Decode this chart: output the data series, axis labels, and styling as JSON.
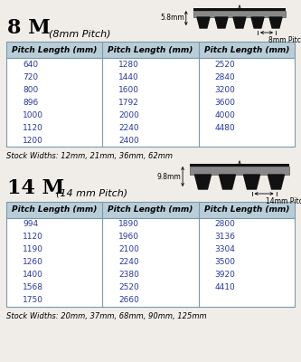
{
  "bg_color": "#f0ede8",
  "table_header_color": "#b8cdd8",
  "table_border_color": "#7a9aaa",
  "text_color_data": "#2a3a9a",
  "section1": {
    "title": "8 M",
    "subtitle": "(8mm Pitch)",
    "dim_height": "5.8mm",
    "dim_pitch": "8mm Pitch",
    "header": [
      "Pitch Length (mm)",
      "Pitch Length (mm)",
      "Pitch Length (mm)"
    ],
    "col1": [
      "640",
      "720",
      "800",
      "896",
      "1000",
      "1120",
      "1200"
    ],
    "col2": [
      "1280",
      "1440",
      "1600",
      "1792",
      "2000",
      "2240",
      "2400"
    ],
    "col3": [
      "2520",
      "2840",
      "3200",
      "3600",
      "4000",
      "4480",
      ""
    ],
    "stock": "Stock Widths: 12mm, 21mm, 36mm, 62mm"
  },
  "section2": {
    "title": "14 M",
    "subtitle": "(14 mm Pitch)",
    "dim_height": "9.8mm",
    "dim_pitch": "14mm Pitch",
    "header": [
      "Pitch Length (mm)",
      "Pitch Length (mm)",
      "Pitch Length (mm)"
    ],
    "col1": [
      "994",
      "1120",
      "1190",
      "1260",
      "1400",
      "1568",
      "1750"
    ],
    "col2": [
      "1890",
      "1960",
      "2100",
      "2240",
      "2380",
      "2520",
      "2660"
    ],
    "col3": [
      "2800",
      "3136",
      "3304",
      "3500",
      "3920",
      "4410",
      ""
    ],
    "stock": "Stock Widths: 20mm, 37mm, 68mm, 90mm, 125mm"
  }
}
